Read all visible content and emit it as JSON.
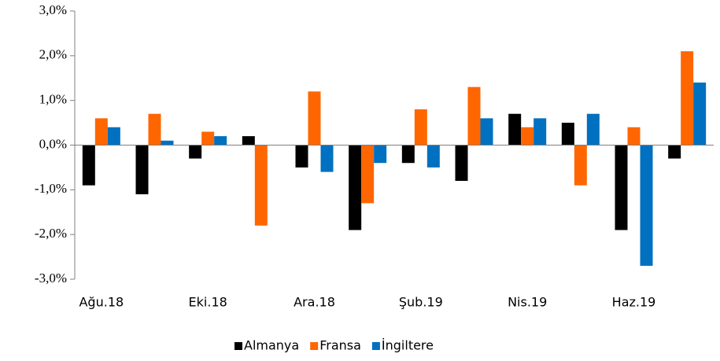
{
  "chart_data": {
    "type": "bar",
    "categories": [
      "Ağu.18",
      null,
      "Eki.18",
      null,
      "Ara.18",
      null,
      "Şub.19",
      null,
      "Nis.19",
      null,
      "Haz.19",
      null
    ],
    "series": [
      {
        "name": "Almanya",
        "color": "#000000",
        "values": [
          -0.9,
          -1.1,
          -0.3,
          0.2,
          -0.5,
          -1.9,
          -0.4,
          -0.8,
          0.7,
          0.5,
          -1.9,
          -0.3
        ]
      },
      {
        "name": "Fransa",
        "color": "#ff6600",
        "values": [
          0.6,
          0.7,
          0.3,
          -1.8,
          1.2,
          -1.3,
          0.8,
          1.3,
          0.4,
          -0.9,
          0.4,
          2.1
        ]
      },
      {
        "name": "İngiltere",
        "color": "#0070c0",
        "values": [
          0.4,
          0.1,
          0.2,
          0,
          -0.6,
          -0.4,
          -0.5,
          0.6,
          0.6,
          0.7,
          -2.7,
          1.4
        ]
      }
    ],
    "ylim": [
      -3,
      3
    ],
    "yticks": [
      {
        "value": 3,
        "label": "3,0%"
      },
      {
        "value": 2,
        "label": "2,0%"
      },
      {
        "value": 1,
        "label": "1,0%"
      },
      {
        "value": 0,
        "label": "0,0%"
      },
      {
        "value": -1,
        "label": "-1,0%"
      },
      {
        "value": -2,
        "label": "-2,0%"
      },
      {
        "value": -3,
        "label": "-3,0%"
      }
    ],
    "legend": "bottom"
  }
}
